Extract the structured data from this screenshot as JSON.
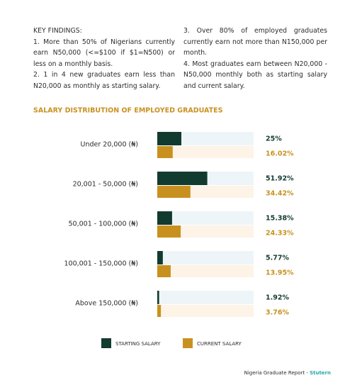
{
  "key_findings": {
    "heading": "KEY FINDINGS:",
    "items": [
      "1. More than 50% of Nigerians currently earn N50,000 (<=$100 if $1=N500) or less on a monthly basis.",
      "2. 1 in 4 new graduates earn less than N20,000 as monthly as starting salary.",
      "3. Over 80% of employed graduates currently earn not more than N150,000 per month.",
      "4. Most graduates earn between N20,000 - N50,000 monthly both as starting salary and current salary."
    ]
  },
  "chart_data": {
    "type": "bar",
    "orientation": "horizontal",
    "title": "SALARY DISTRIBUTION OF EMPLOYED GRADUATES",
    "categories": [
      "Under 20,000 (₦)",
      "20,001 - 50,000 (₦)",
      "50,001 - 100,000 (₦)",
      "100,001 - 150,000 (₦)",
      "Above 150,000 (₦)"
    ],
    "series": [
      {
        "name": "STARTING SALARY",
        "color": "#123b2f",
        "values": [
          25,
          51.92,
          15.38,
          5.77,
          1.92
        ],
        "value_labels": [
          "25%",
          "51.92%",
          "15.38%",
          "5.77%",
          "1.92%"
        ]
      },
      {
        "name": "CURRENT SALARY",
        "color": "#c8911f",
        "values": [
          16.02,
          34.42,
          24.33,
          13.95,
          3.76
        ],
        "value_labels": [
          "16.02%",
          "34.42%",
          "24.33%",
          "13.95%",
          "3.76%"
        ]
      }
    ],
    "xlim": [
      0,
      100
    ]
  },
  "footer": {
    "text": "Nigeria Graduate Report -",
    "brand": "Stutern"
  }
}
